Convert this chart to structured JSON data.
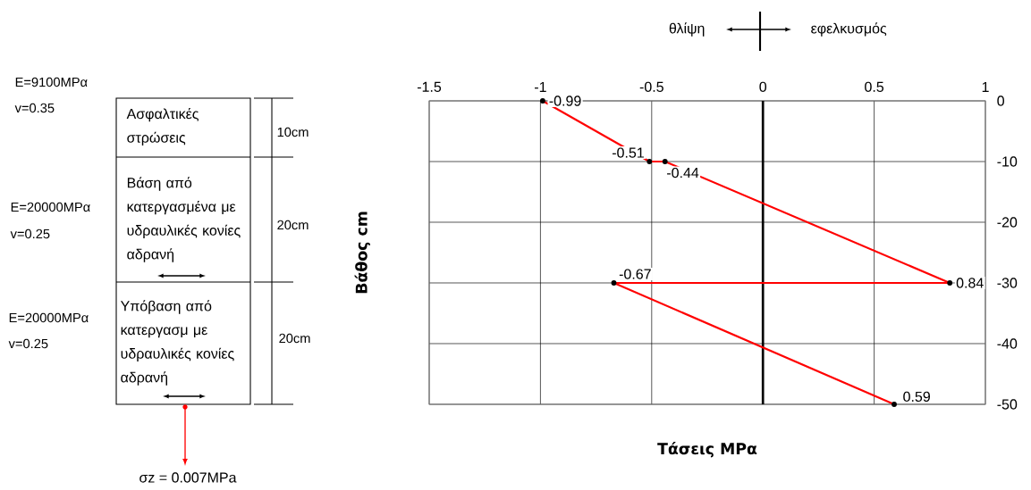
{
  "chart_data": {
    "type": "line",
    "xlabel": "Τάσεις ΜPα",
    "ylabel": "Βάθος cm",
    "x": [
      -0.99,
      -0.51,
      -0.44,
      0.84,
      -0.67,
      0.59
    ],
    "values": [
      0,
      -10,
      -10,
      -30,
      -30,
      -50
    ],
    "color": "#ff0000",
    "marker": "circle",
    "line_style": "solid",
    "grid": true,
    "xlim": [
      -1.5,
      1
    ],
    "ylim": [
      -50,
      0
    ],
    "xticks": [
      -1.5,
      -1,
      -0.5,
      0,
      0.5,
      1
    ],
    "yticks": [
      0,
      -10,
      -20,
      -30,
      -40,
      -50
    ],
    "ref_lines": [
      {
        "axis": "x",
        "value": 0,
        "color": "#000000"
      }
    ],
    "annotations": [
      "θλίψη",
      "εφελκυσμός",
      "E=9100MPα",
      "v=0.35",
      "Ασφαλτικές στρώσεις",
      "10cm",
      "E=20000MPα",
      "v=0.25",
      "Βάση από κατεργασμένα με υδραυλικές κονίες αδρανή",
      "20cm",
      "E=20000MPα",
      "v=0.25",
      "Υπόβαση από κατεργασμ με υδραυλικές κονίες αδρανή",
      "20cm",
      "σz = 0.007MPa",
      {
        "text": "-0.99",
        "x": -0.99,
        "y": 0
      },
      {
        "text": "-0.51",
        "x": -0.51,
        "y": -10
      },
      {
        "text": "-0.44",
        "x": -0.44,
        "y": -10
      },
      {
        "text": "0.84",
        "x": 0.84,
        "y": -30
      },
      {
        "text": "-0.67",
        "x": -0.67,
        "y": -30
      },
      {
        "text": "0.59",
        "x": 0.59,
        "y": -50
      }
    ]
  }
}
